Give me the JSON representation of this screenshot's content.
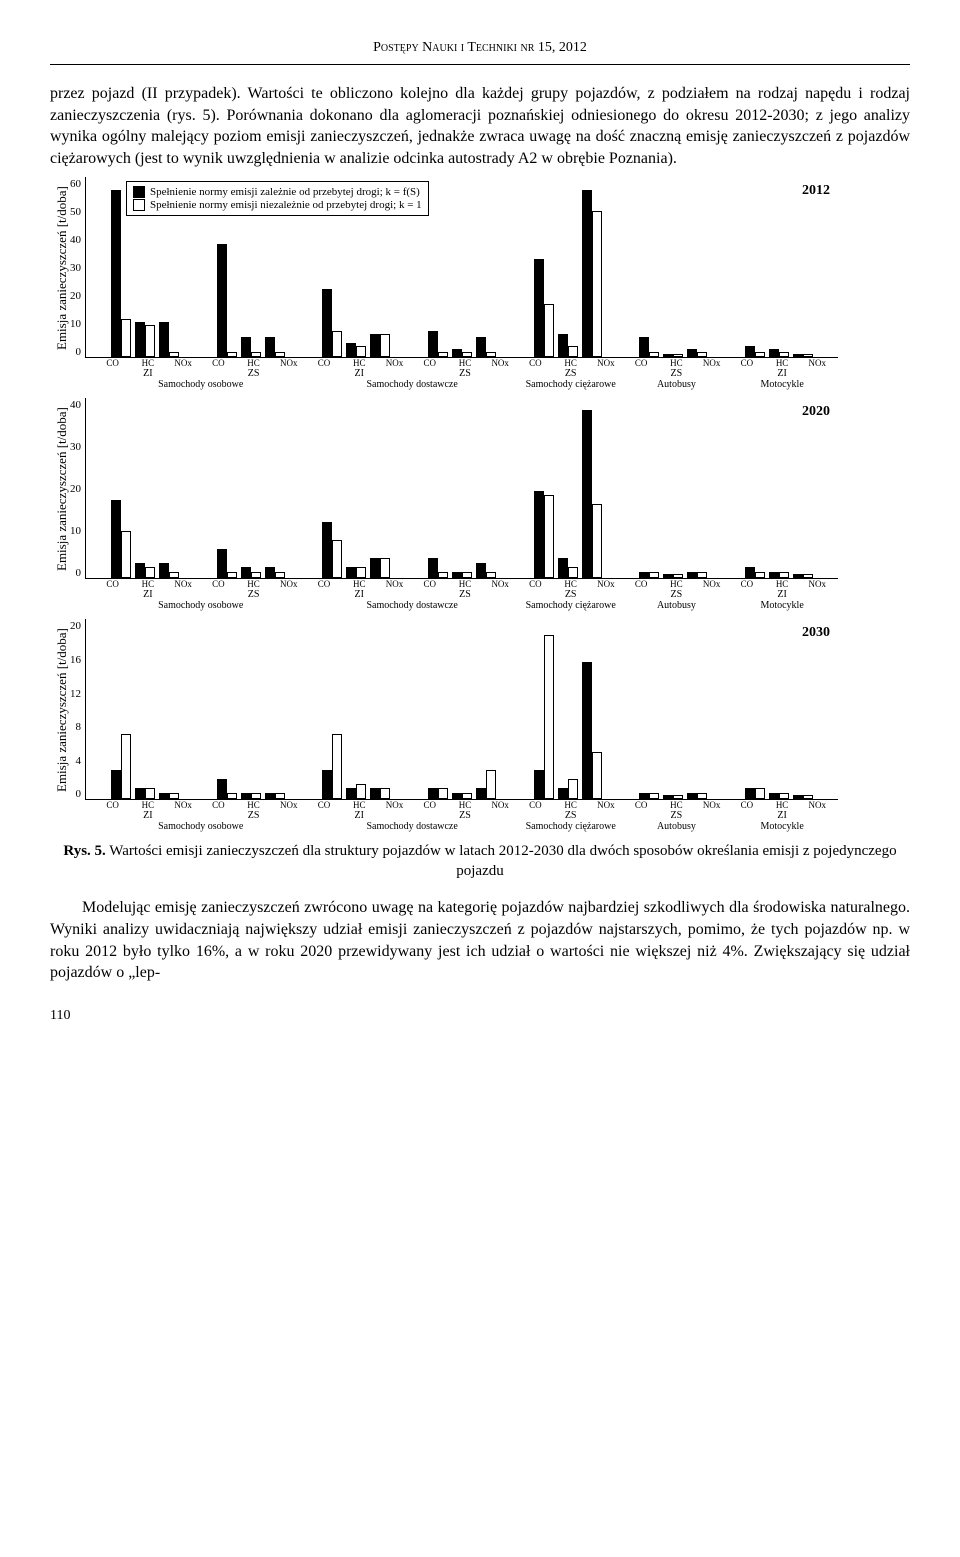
{
  "header": "Postępy Nauki i Techniki nr 15, 2012",
  "paragraph_top": "przez pojazd (II przypadek). Wartości te obliczono kolejno dla każdej grupy pojazdów, z podziałem na rodzaj napędu i rodzaj zanieczyszczenia (rys. 5). Porównania dokonano dla aglomeracji poznańskiej odniesionego do okresu 2012-2030; z jego analizy wynika ogólny malejący poziom emisji zanieczyszczeń, jednakże zwraca uwagę na dość znaczną emisję zanieczyszczeń z pojazdów ciężarowych (jest to wynik uwzględnienia w analizie odcinka autostrady A2 w obrębie Poznania).",
  "legend": {
    "item1": "Spełnienie normy emisji zależnie od przebytej drogi; k = f(S)",
    "item2": "Spełnienie normy emisji niezależnie od przebytej drogi; k = 1"
  },
  "ylabel": "Emisja zanieczyszczeń [t/doba]",
  "engine_labels": [
    "ZI",
    "ZS",
    "ZI",
    "ZS",
    "ZS",
    "ZS",
    "ZI"
  ],
  "vehicle_labels": [
    "Samochody osobowe",
    "Samochody dostawcze",
    "Samochody ciężarowe",
    "Autobusy",
    "Motocykle"
  ],
  "vehicle_spans": [
    2,
    2,
    1,
    1,
    1
  ],
  "pollutants": [
    "CO",
    "HC",
    "NOx"
  ],
  "charts": [
    {
      "year": "2012",
      "ymax": 60,
      "yticks": [
        "60",
        "50",
        "40",
        "30",
        "20",
        "10",
        "0"
      ],
      "show_legend": true,
      "groups": [
        {
          "bars": [
            [
              55,
              12
            ],
            [
              11,
              10
            ],
            [
              11,
              1
            ]
          ]
        },
        {
          "bars": [
            [
              37,
              1
            ],
            [
              6,
              1
            ],
            [
              6,
              1
            ]
          ]
        },
        {
          "bars": [
            [
              22,
              8
            ],
            [
              4,
              3
            ],
            [
              7,
              7
            ]
          ]
        },
        {
          "bars": [
            [
              8,
              1
            ],
            [
              2,
              1
            ],
            [
              6,
              1
            ]
          ]
        },
        {
          "bars": [
            [
              32,
              17
            ],
            [
              7,
              3
            ],
            [
              55,
              48
            ]
          ]
        },
        {
          "bars": [
            [
              6,
              1
            ],
            [
              0.5,
              0.5
            ],
            [
              2,
              1
            ]
          ]
        },
        {
          "bars": [
            [
              3,
              1
            ],
            [
              2,
              1
            ],
            [
              0.5,
              0.5
            ]
          ]
        }
      ]
    },
    {
      "year": "2020",
      "ymax": 40,
      "yticks": [
        "40",
        "30",
        "20",
        "10",
        "0"
      ],
      "show_legend": false,
      "groups": [
        {
          "bars": [
            [
              17,
              10
            ],
            [
              3,
              2
            ],
            [
              3,
              1
            ]
          ]
        },
        {
          "bars": [
            [
              6,
              1
            ],
            [
              2,
              1
            ],
            [
              2,
              1
            ]
          ]
        },
        {
          "bars": [
            [
              12,
              8
            ],
            [
              2,
              2
            ],
            [
              4,
              4
            ]
          ]
        },
        {
          "bars": [
            [
              4,
              1
            ],
            [
              1,
              1
            ],
            [
              3,
              1
            ]
          ]
        },
        {
          "bars": [
            [
              19,
              18
            ],
            [
              4,
              2
            ],
            [
              37,
              16
            ]
          ]
        },
        {
          "bars": [
            [
              1,
              1
            ],
            [
              0.5,
              0.5
            ],
            [
              1,
              1
            ]
          ]
        },
        {
          "bars": [
            [
              2,
              1
            ],
            [
              1,
              1
            ],
            [
              0.5,
              0.5
            ]
          ]
        }
      ]
    },
    {
      "year": "2030",
      "ymax": 20,
      "yticks": [
        "20",
        "16",
        "12",
        "8",
        "4",
        "0"
      ],
      "show_legend": false,
      "groups": [
        {
          "bars": [
            [
              3,
              7
            ],
            [
              1,
              1
            ],
            [
              0.5,
              0.5
            ]
          ]
        },
        {
          "bars": [
            [
              2,
              0.5
            ],
            [
              0.5,
              0.5
            ],
            [
              0.5,
              0.5
            ]
          ]
        },
        {
          "bars": [
            [
              3,
              7
            ],
            [
              1,
              1.5
            ],
            [
              1,
              1
            ]
          ]
        },
        {
          "bars": [
            [
              1,
              1
            ],
            [
              0.5,
              0.5
            ],
            [
              1,
              3
            ]
          ]
        },
        {
          "bars": [
            [
              3,
              18
            ],
            [
              1,
              2
            ],
            [
              15,
              5
            ]
          ]
        },
        {
          "bars": [
            [
              0.5,
              0.5
            ],
            [
              0.3,
              0.3
            ],
            [
              0.5,
              0.5
            ]
          ]
        },
        {
          "bars": [
            [
              1,
              1
            ],
            [
              0.5,
              0.5
            ],
            [
              0.3,
              0.3
            ]
          ]
        }
      ]
    }
  ],
  "caption_bold": "Rys. 5.",
  "caption_text": " Wartości emisji zanieczyszczeń dla struktury pojazdów w latach 2012-2030 dla dwóch sposobów określania emisji z pojedynczego pojazdu",
  "paragraph_bottom": "Modelując emisję zanieczyszczeń zwrócono uwagę na kategorię pojazdów najbardziej szkodliwych dla środowiska naturalnego. Wyniki analizy uwidaczniają największy udział emisji zanieczyszczeń z pojazdów najstarszych, pomimo, że tych pojazdów np. w roku 2012 było tylko 16%, a w roku 2020 przewidywany jest ich udział o wartości nie większej niż 4%. Zwiększający się udział pojazdów o „lep-",
  "page_number": "110"
}
